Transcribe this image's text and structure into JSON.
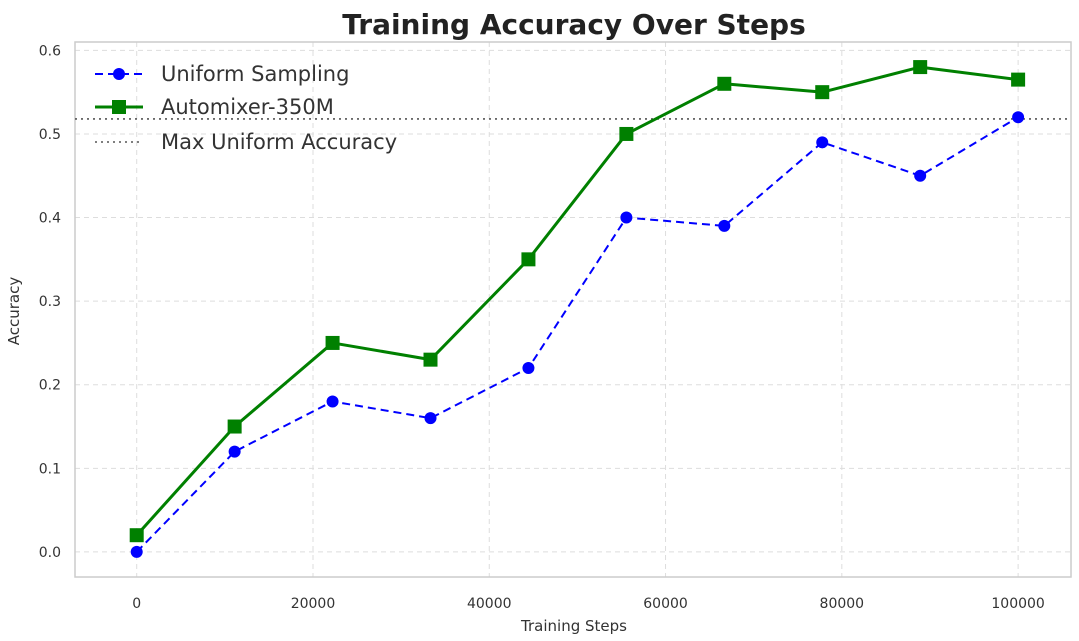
{
  "chart_data": {
    "type": "line",
    "title": "Training Accuracy Over Steps",
    "xlabel": "Training Steps",
    "ylabel": "Accuracy",
    "xlim": [
      -7000,
      106000
    ],
    "ylim": [
      -0.03,
      0.61
    ],
    "xticks": [
      0,
      20000,
      40000,
      60000,
      80000,
      100000
    ],
    "yticks": [
      0.0,
      0.1,
      0.2,
      0.3,
      0.4,
      0.5,
      0.6
    ],
    "x": [
      0,
      11111,
      22222,
      33333,
      44444,
      55556,
      66667,
      77778,
      88889,
      100000
    ],
    "series": [
      {
        "name": "Uniform Sampling",
        "values": [
          0.0,
          0.12,
          0.18,
          0.16,
          0.22,
          0.4,
          0.39,
          0.49,
          0.45,
          0.52
        ],
        "color": "#0000ff",
        "style": "dashed",
        "marker": "circle"
      },
      {
        "name": "Automixer-350M",
        "values": [
          0.02,
          0.15,
          0.25,
          0.23,
          0.35,
          0.5,
          0.56,
          0.55,
          0.58,
          0.565
        ],
        "color": "#008000",
        "style": "solid",
        "marker": "square"
      }
    ],
    "reference_line": {
      "name": "Max Uniform Accuracy",
      "value": 0.518,
      "color": "#555555",
      "style": "dotted"
    },
    "grid": true,
    "legend_position": "top-left"
  }
}
